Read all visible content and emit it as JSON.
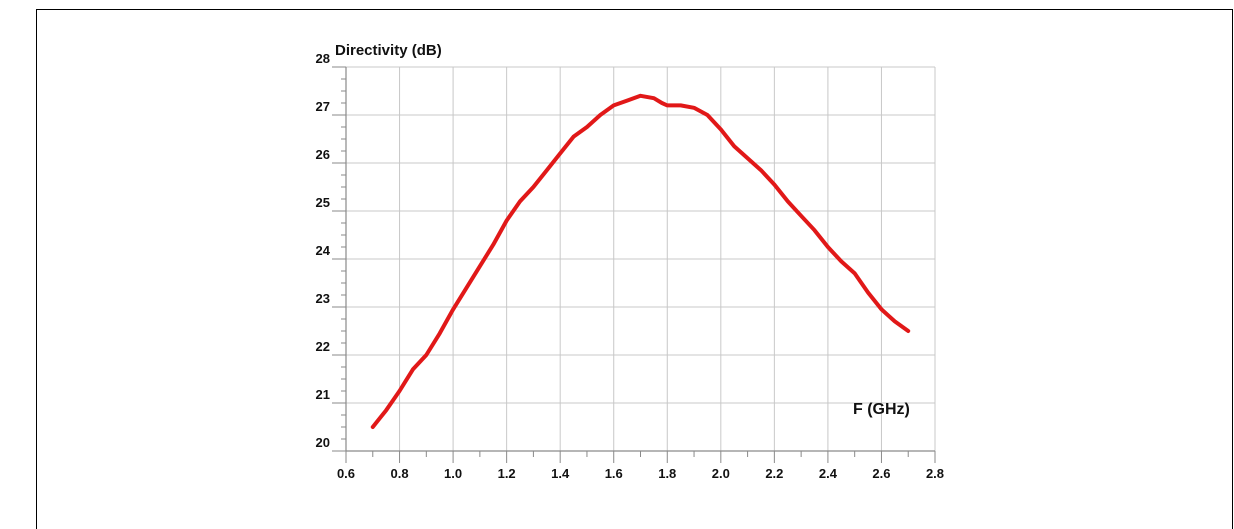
{
  "chart_data": {
    "type": "line",
    "ylabel": "Directivity (dB)",
    "xlabel": "F (GHz)",
    "xlim": [
      0.6,
      2.8
    ],
    "ylim": [
      20,
      28
    ],
    "x_ticks": [
      0.6,
      0.8,
      1.0,
      1.2,
      1.4,
      1.6,
      1.8,
      2.0,
      2.2,
      2.4,
      2.6,
      2.8
    ],
    "x_tick_labels": [
      "0.6",
      "0.8",
      "1.0",
      "1.2",
      "1.4",
      "1.6",
      "1.8",
      "2.0",
      "2.2",
      "2.4",
      "2.6",
      "2.8"
    ],
    "y_ticks": [
      20,
      21,
      22,
      23,
      24,
      25,
      26,
      27,
      28
    ],
    "y_tick_labels": [
      "20",
      "21",
      "22",
      "23",
      "24",
      "25",
      "26",
      "27",
      "28"
    ],
    "grid": true,
    "line_color": "#e11818",
    "series": [
      {
        "x": [
          0.7,
          0.75,
          0.8,
          0.85,
          0.9,
          0.95,
          1.0,
          1.05,
          1.1,
          1.15,
          1.2,
          1.25,
          1.3,
          1.35,
          1.4,
          1.45,
          1.5,
          1.55,
          1.6,
          1.65,
          1.7,
          1.75,
          1.78,
          1.8,
          1.85,
          1.9,
          1.95,
          2.0,
          2.05,
          2.1,
          2.15,
          2.2,
          2.25,
          2.3,
          2.35,
          2.4,
          2.45,
          2.5,
          2.55,
          2.6,
          2.65,
          2.7
        ],
        "values": [
          20.5,
          20.85,
          21.25,
          21.7,
          22.0,
          22.45,
          22.95,
          23.4,
          23.85,
          24.3,
          24.8,
          25.2,
          25.5,
          25.85,
          26.2,
          26.55,
          26.75,
          27.0,
          27.2,
          27.3,
          27.4,
          27.35,
          27.25,
          27.2,
          27.2,
          27.15,
          27.0,
          26.7,
          26.35,
          26.1,
          25.85,
          25.55,
          25.2,
          24.9,
          24.6,
          24.25,
          23.95,
          23.7,
          23.3,
          22.95,
          22.7,
          22.5
        ]
      }
    ]
  }
}
